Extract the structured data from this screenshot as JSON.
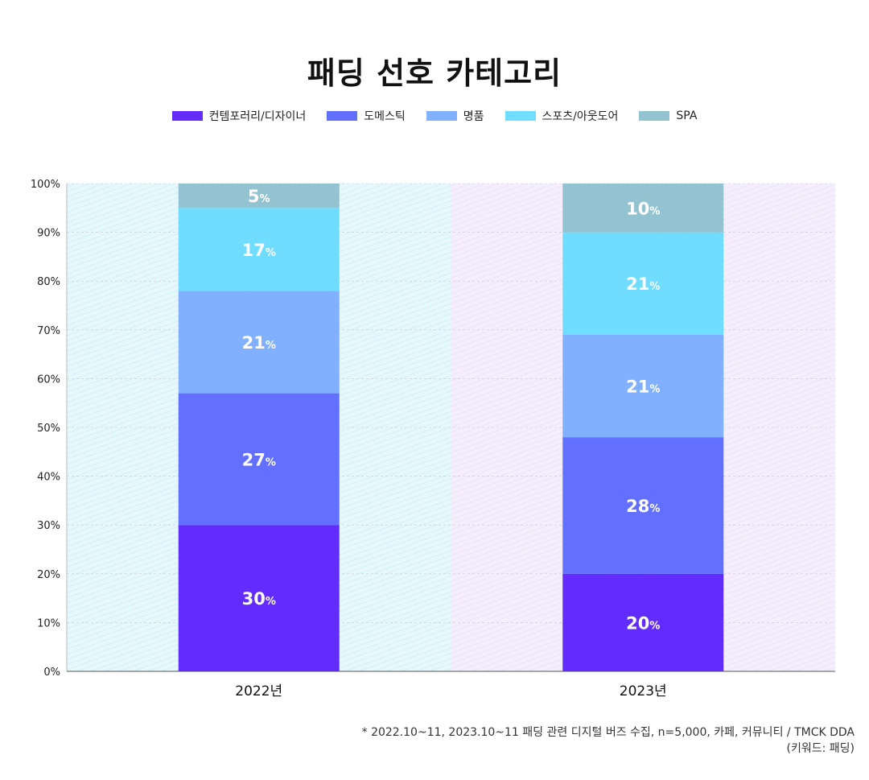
{
  "chart_data": {
    "type": "bar",
    "stacked": true,
    "title": "패딩 선호 카테고리",
    "categories": [
      "2022년",
      "2023년"
    ],
    "series": [
      {
        "name": "컨템포러리/디자이너",
        "color": "#632cff",
        "values": [
          30,
          20
        ],
        "labels": [
          "30%",
          "20%"
        ]
      },
      {
        "name": "도메스틱",
        "color": "#6370ff",
        "values": [
          27,
          28
        ],
        "labels": [
          "27%",
          "28%"
        ]
      },
      {
        "name": "명품",
        "color": "#80b0ff",
        "values": [
          21,
          21
        ],
        "labels": [
          "21%",
          "21%"
        ]
      },
      {
        "name": "스포츠/아웃도어",
        "color": "#70dcff",
        "values": [
          17,
          21
        ],
        "labels": [
          "17%",
          "21%"
        ]
      },
      {
        "name": "SPA",
        "color": "#93c2d0",
        "values": [
          5,
          10
        ],
        "labels": [
          "5%",
          "10%"
        ]
      }
    ],
    "ylim": [
      0,
      100
    ],
    "yticks": [
      "0%",
      "10%",
      "20%",
      "30%",
      "40%",
      "50%",
      "60%",
      "70%",
      "80%",
      "90%",
      "100%"
    ],
    "grid": true,
    "legend_position": "top",
    "background_colors": [
      "#e6f8fc",
      "#f5eefc"
    ]
  },
  "note": {
    "line1": "* 2022.10~11, 2023.10~11 패딩 관련 디지털 버즈 수집, n=5,000, 카페, 커뮤니티 / TMCK DDA",
    "line2": "(키워드: 패딩)"
  }
}
